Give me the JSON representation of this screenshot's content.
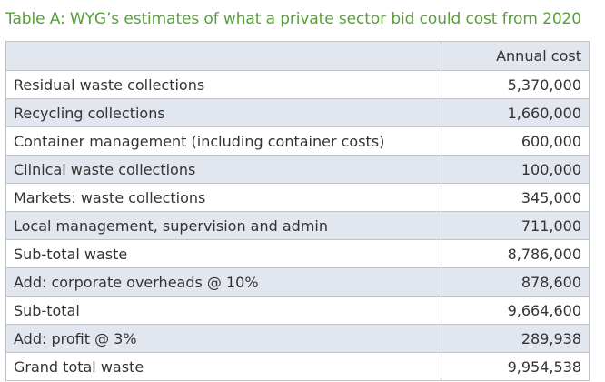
{
  "title": "Table A: WYG’s estimates of what a private sector bid could cost from 2020",
  "table": {
    "header": {
      "label": "",
      "value": "Annual cost"
    },
    "rows": [
      {
        "label": "Residual waste collections",
        "value": "5,370,000"
      },
      {
        "label": "Recycling collections",
        "value": "1,660,000"
      },
      {
        "label": "Container management (including container costs)",
        "value": "600,000"
      },
      {
        "label": "Clinical waste collections",
        "value": "100,000"
      },
      {
        "label": "Markets: waste collections",
        "value": "345,000"
      },
      {
        "label": "Local management, supervision and admin",
        "value": "711,000"
      },
      {
        "label": "Sub-total waste",
        "value": "8,786,000"
      },
      {
        "label": "Add: corporate overheads @ 10%",
        "value": "878,600"
      },
      {
        "label": "Sub-total",
        "value": "9,664,600"
      },
      {
        "label": "Add: profit @ 3%",
        "value": "289,938"
      },
      {
        "label": "Grand total waste",
        "value": "9,954,538"
      }
    ]
  },
  "colors": {
    "title": "#57a037",
    "band": "#e2e6ee",
    "border": "#bfc3c7",
    "text": "#333333"
  }
}
